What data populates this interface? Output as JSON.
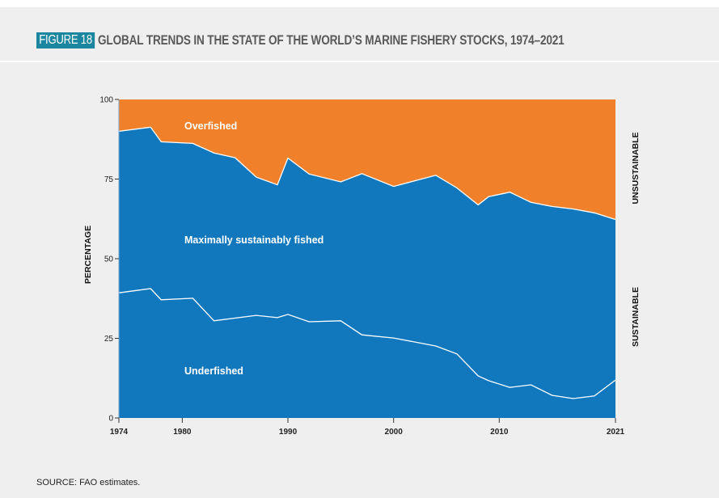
{
  "header": {
    "figure_label": "FIGURE 18",
    "title": "GLOBAL TRENDS IN THE STATE OF THE WORLD’S MARINE FISHERY STOCKS, 1974–2021"
  },
  "colors": {
    "overfished": "#f08029",
    "sustainable": "#1278be",
    "badge": "#1b86a0",
    "divider_line": "#ffffff"
  },
  "chart_data": {
    "type": "area",
    "stacked": true,
    "title": "GLOBAL TRENDS IN THE STATE OF THE WORLD’S MARINE FISHERY STOCKS, 1974–2021",
    "xlabel": "",
    "ylabel": "PERCENTAGE",
    "xlim": [
      1974,
      2021
    ],
    "ylim": [
      0,
      100
    ],
    "x_ticks": [
      1974,
      1980,
      1990,
      2000,
      2010,
      2021
    ],
    "x_tick_labels": [
      "1974",
      "1980",
      "1990",
      "2000",
      "2010",
      "2021"
    ],
    "y_ticks": [
      0,
      25,
      50,
      75,
      100
    ],
    "y_tick_labels": [
      "0",
      "25",
      "50",
      "75",
      "100"
    ],
    "grid": false,
    "series": [
      {
        "name": "Underfished",
        "label": "Underfished",
        "x": [
          1974,
          1977,
          1978,
          1981,
          1983,
          1987,
          1989,
          1990,
          1992,
          1995,
          1997,
          2000,
          2004,
          2006,
          2008,
          2009,
          2011,
          2013,
          2015,
          2017,
          2019,
          2021
        ],
        "upper": [
          39.3,
          40.6,
          37.1,
          37.6,
          30.5,
          32.2,
          31.5,
          32.5,
          30.2,
          30.5,
          26.1,
          25.1,
          22.6,
          20.1,
          13.2,
          11.7,
          9.6,
          10.4,
          7.1,
          6.1,
          6.9,
          11.9
        ]
      },
      {
        "name": "Maximally sustainably fished",
        "label": "Maximally sustainably fished",
        "x": [
          1974,
          1977,
          1978,
          1981,
          1983,
          1985,
          1987,
          1989,
          1990,
          1992,
          1995,
          1997,
          2000,
          2004,
          2006,
          2008,
          2009,
          2011,
          2013,
          2015,
          2017,
          2019,
          2021
        ],
        "upper": [
          90.0,
          91.3,
          86.7,
          86.2,
          83.2,
          81.7,
          75.6,
          73.2,
          81.6,
          76.6,
          74.1,
          76.7,
          72.7,
          76.2,
          72.2,
          66.9,
          69.5,
          70.9,
          67.7,
          66.4,
          65.6,
          64.4,
          62.3
        ]
      },
      {
        "name": "Overfished",
        "label": "Overfished",
        "upper_constant": 100
      }
    ],
    "side_labels": {
      "upper": "UNSUSTAINABLE",
      "lower": "SUSTAINABLE"
    }
  },
  "footer": {
    "source": "SOURCE: FAO estimates."
  }
}
